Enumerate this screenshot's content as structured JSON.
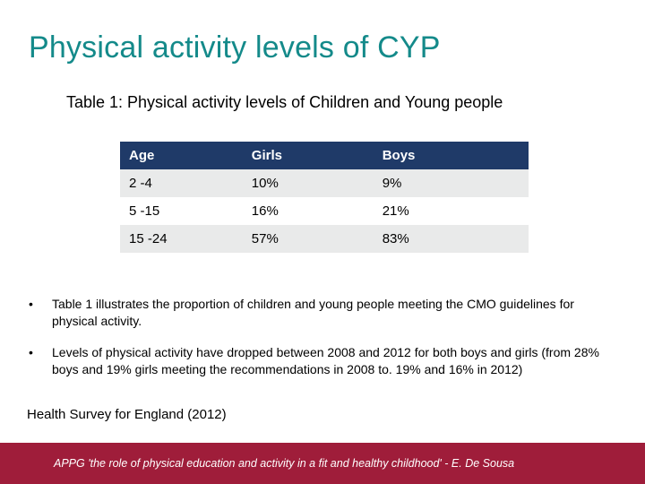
{
  "title": {
    "text": "Physical activity levels of CYP",
    "color": "#148a8a"
  },
  "table_caption": "Table 1: Physical activity levels of Children and Young people",
  "table": {
    "type": "table",
    "header_bg": "#1f3a68",
    "header_fg": "#ffffff",
    "row_alt_bg_even": "#e9eaea",
    "row_alt_bg_odd": "#ffffff",
    "border_color": "#ffffff",
    "col_widths_pct": [
      30,
      32,
      38
    ],
    "fontsize": 15,
    "header_fontsize": 15,
    "header_fontweight": "700",
    "columns": [
      "Age",
      "Girls",
      "Boys"
    ],
    "rows": [
      [
        "2 -4",
        "10%",
        "9%"
      ],
      [
        "5 -15",
        "16%",
        "21%"
      ],
      [
        "15 -24",
        "57%",
        "83%"
      ]
    ]
  },
  "bullets": [
    "Table 1 illustrates the proportion of children and young people meeting the CMO guidelines for physical activity.",
    "Levels of physical activity have dropped between 2008 and 2012 for both boys and girls (from 28% boys and 19% girls meeting the recommendations in 2008 to. 19% and 16% in 2012)"
  ],
  "source_line": "Health Survey for England (2012)",
  "footer": {
    "text": "APPG 'the role of physical education and activity in a fit and healthy childhood'  -  E. De Sousa",
    "bg": "#9f1d3a",
    "fg": "#ffffff"
  },
  "background_color": "#ffffff"
}
